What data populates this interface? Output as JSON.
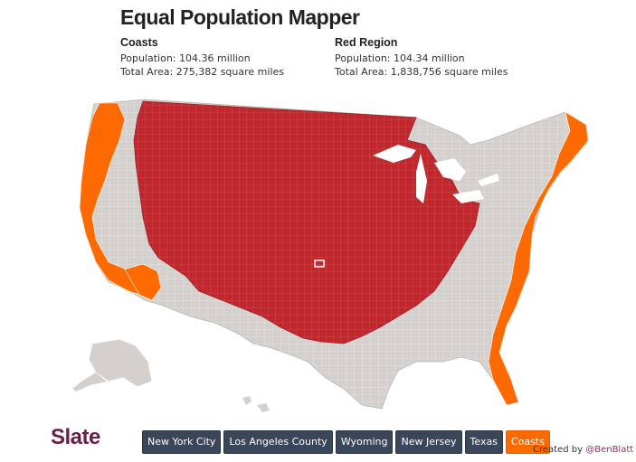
{
  "header": {
    "title": "Equal Population Mapper"
  },
  "stats": {
    "left": {
      "heading": "Coasts",
      "population_label": "Population:",
      "population_value": "104.36 million",
      "area_label": "Total Area:",
      "area_value": "275,382 square miles"
    },
    "right": {
      "heading": "Red Region",
      "population_label": "Population:",
      "population_value": "104.34 million",
      "area_label": "Total Area:",
      "area_value": "1,838,756 square miles"
    }
  },
  "map": {
    "colors": {
      "base": "#d3d0cd",
      "red_region": "#c1272d",
      "coasts": "#ff6a00",
      "marker": "#ffffff"
    }
  },
  "footer": {
    "logo": "Slate",
    "buttons": [
      {
        "label": "New York City",
        "active": false
      },
      {
        "label": "Los Angeles County",
        "active": false
      },
      {
        "label": "Wyoming",
        "active": false
      },
      {
        "label": "New Jersey",
        "active": false
      },
      {
        "label": "Texas",
        "active": false
      },
      {
        "label": "Coasts",
        "active": true
      }
    ],
    "credit_prefix": "Created by",
    "credit_handle": "@BenBlatt"
  }
}
